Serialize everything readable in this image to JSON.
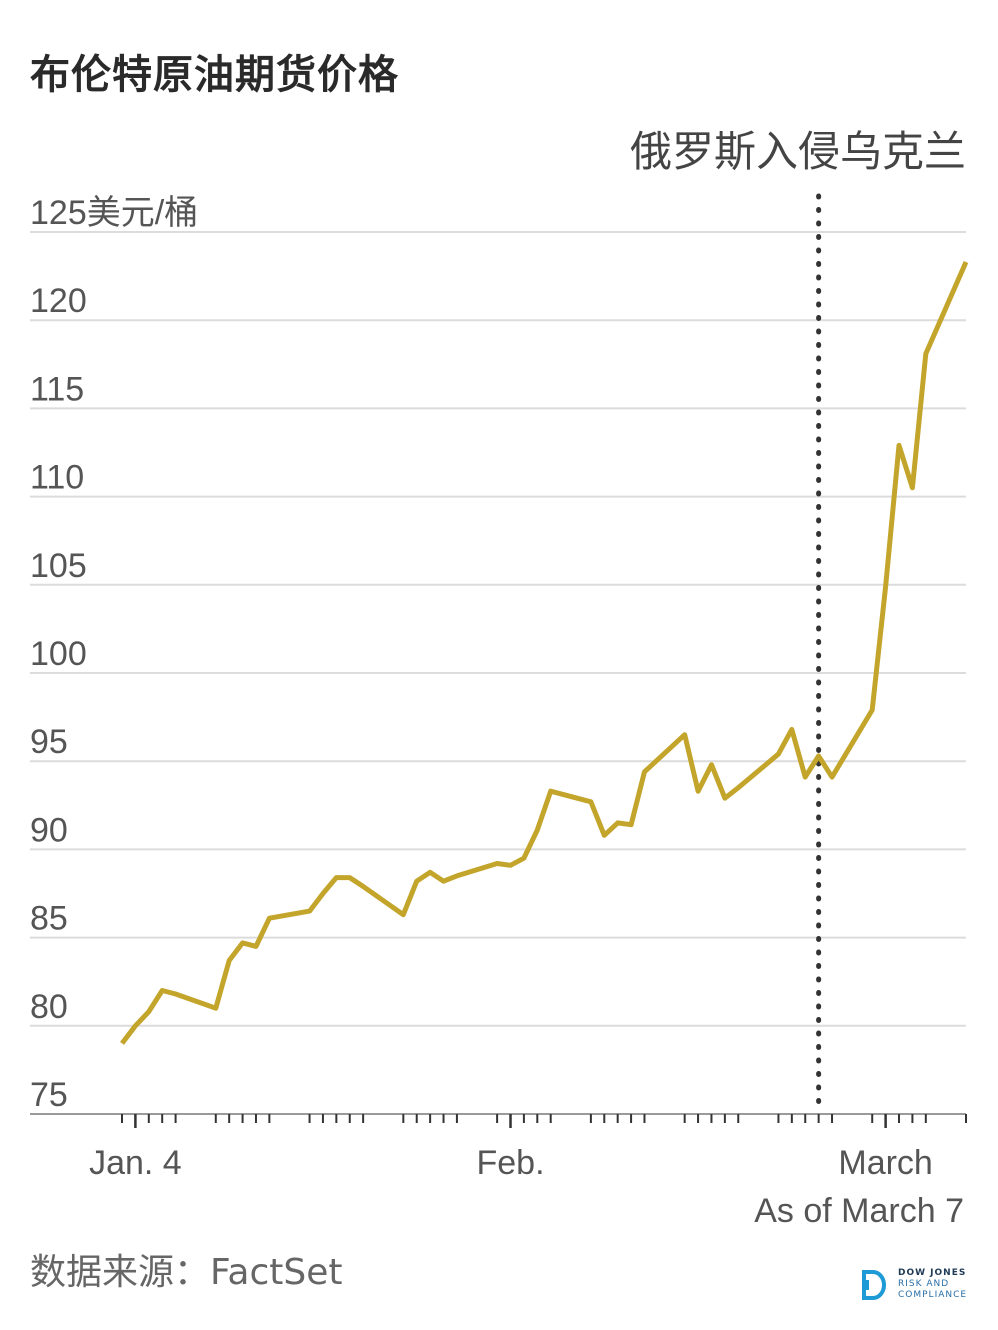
{
  "title": "布伦特原油期货价格",
  "source": "数据来源：FactSet",
  "brand": {
    "line1": "DOW JONES",
    "line2": "RISK AND",
    "line3": "COMPLIANCE",
    "accent": "#1e9ad6"
  },
  "chart_data": {
    "type": "line",
    "title": "布伦特原油期货价格",
    "ylabel_unit": "美元/桶",
    "ylim": [
      75,
      125
    ],
    "yticks": [
      75,
      80,
      85,
      90,
      95,
      100,
      105,
      110,
      115,
      120,
      125
    ],
    "yticks_labels": [
      "75",
      "80",
      "85",
      "90",
      "95",
      "100",
      "105",
      "110",
      "115",
      "120",
      "125美元/桶"
    ],
    "grid": true,
    "line_color": "#c4a52c",
    "x_labels": [
      {
        "label": "Jan. 4",
        "date": "2022-01-04"
      },
      {
        "label": "Feb.",
        "date": "2022-02-01"
      },
      {
        "label": "March",
        "date": "2022-03-01"
      }
    ],
    "x_range": [
      "2022-01-03",
      "2022-03-07"
    ],
    "note": "As of March 7",
    "event": {
      "date": "2022-02-24",
      "label": "俄罗斯入侵乌克兰",
      "style": "dotted"
    },
    "series": [
      {
        "x": [
          "2022-01-03",
          "2022-01-04",
          "2022-01-05",
          "2022-01-06",
          "2022-01-07",
          "2022-01-10",
          "2022-01-11",
          "2022-01-12",
          "2022-01-13",
          "2022-01-14",
          "2022-01-17",
          "2022-01-18",
          "2022-01-19",
          "2022-01-20",
          "2022-01-21",
          "2022-01-24",
          "2022-01-25",
          "2022-01-26",
          "2022-01-27",
          "2022-01-28",
          "2022-01-31",
          "2022-02-01",
          "2022-02-02",
          "2022-02-03",
          "2022-02-04",
          "2022-02-07",
          "2022-02-08",
          "2022-02-09",
          "2022-02-10",
          "2022-02-11",
          "2022-02-14",
          "2022-02-15",
          "2022-02-16",
          "2022-02-17",
          "2022-02-18",
          "2022-02-21",
          "2022-02-22",
          "2022-02-23",
          "2022-02-24",
          "2022-02-25",
          "2022-02-28",
          "2022-03-01",
          "2022-03-02",
          "2022-03-03",
          "2022-03-04",
          "2022-03-07"
        ],
        "values": [
          79.0,
          80.0,
          80.8,
          82.0,
          81.8,
          81.0,
          83.7,
          84.7,
          84.5,
          86.1,
          86.5,
          87.5,
          88.4,
          88.4,
          87.9,
          86.3,
          88.2,
          88.7,
          88.2,
          88.5,
          89.2,
          89.1,
          89.5,
          91.1,
          93.3,
          92.7,
          90.8,
          91.5,
          91.4,
          94.4,
          96.5,
          93.3,
          94.8,
          92.9,
          93.5,
          95.4,
          96.8,
          94.1,
          95.3,
          94.1,
          97.9,
          104.9,
          112.9,
          110.5,
          118.1,
          123.3
        ]
      }
    ]
  }
}
